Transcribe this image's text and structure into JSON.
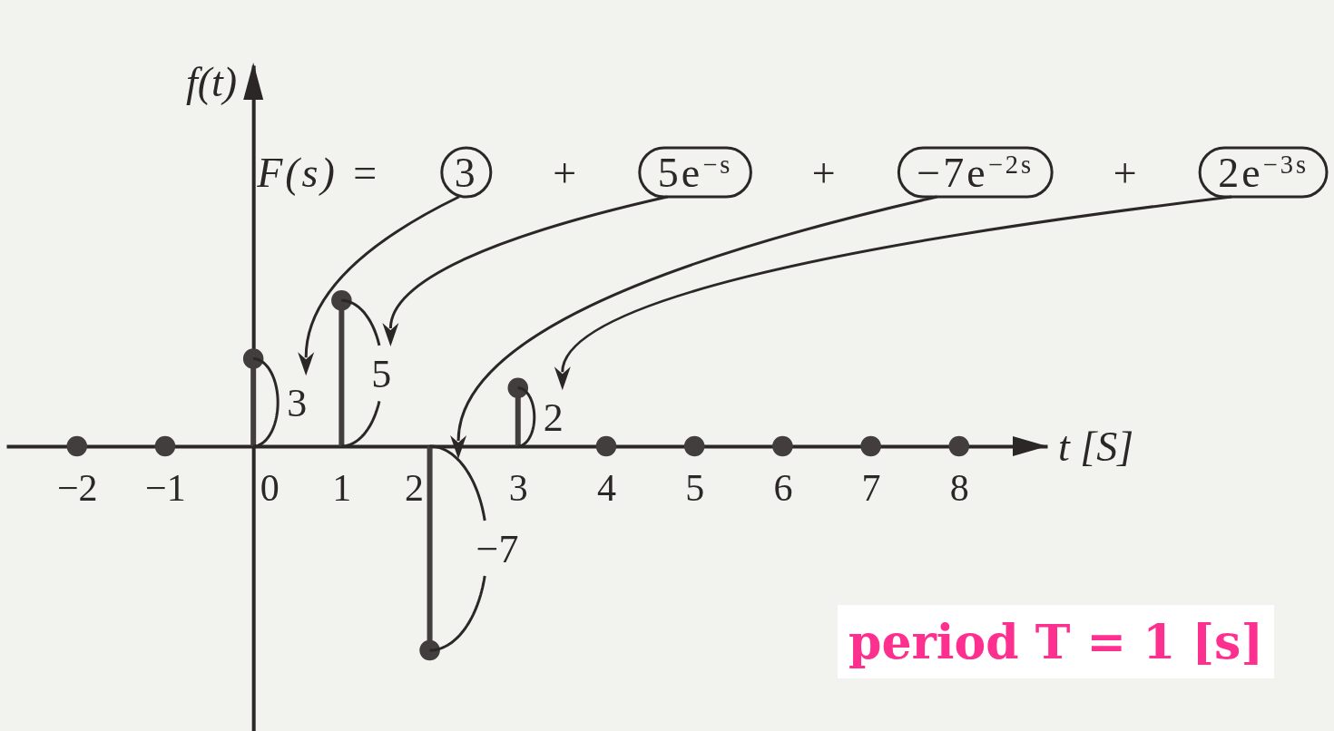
{
  "chart_data": {
    "type": "lollipop",
    "x": [
      -2,
      -1,
      0,
      1,
      2,
      3,
      4,
      5,
      6,
      7,
      8
    ],
    "values": [
      0,
      0,
      3,
      5,
      -7,
      2,
      0,
      0,
      0,
      0,
      0
    ],
    "color": "#433e3e",
    "value_labels": [
      null,
      null,
      "3",
      "5",
      "−7",
      "2",
      null,
      null,
      null,
      null,
      null
    ],
    "marker": "circle",
    "xlim": [
      -2.8,
      9
    ],
    "xticks": [
      {
        "value": -2,
        "label": "−2"
      },
      {
        "value": -1,
        "label": "−1"
      },
      0,
      1,
      2,
      3,
      4,
      5,
      6,
      7,
      8
    ],
    "tick_labels": "x",
    "xlabel": "t [S]",
    "ylabel": "f(t)",
    "annotations": [
      "F(s) =",
      "3",
      "+",
      "5e$^{−s}$",
      "+",
      "−7e$^{−2s}$",
      "+",
      "2e$^{−3s}$",
      "period T = 1 [s]"
    ]
  }
}
